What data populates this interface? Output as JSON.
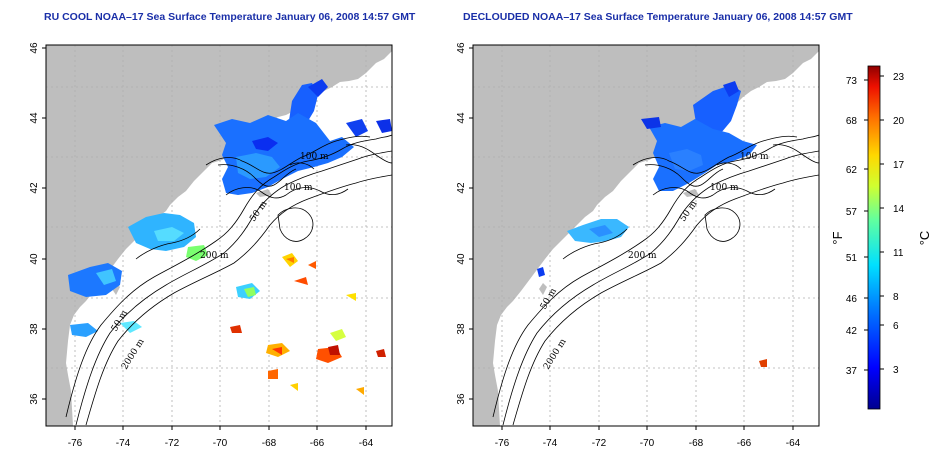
{
  "panels": [
    {
      "title": "RU COOL NOAA–17 Sea Surface Temperature January 06, 2008 14:57 GMT",
      "lat_ticks": [
        "36",
        "38",
        "40",
        "42",
        "44",
        "46"
      ],
      "lon_ticks": [
        "-76",
        "-74",
        "-72",
        "-70",
        "-68",
        "-66",
        "-64"
      ],
      "contour_labels": [
        "100 m",
        "100 m",
        "50 m",
        "200 m",
        "50 m",
        "2000 m"
      ]
    },
    {
      "title": "DECLOUDED NOAA–17 Sea Surface Temperature January 06, 2008 14:57 GMT",
      "lat_ticks": [
        "36",
        "38",
        "40",
        "42",
        "44",
        "46"
      ],
      "lon_ticks": [
        "-76",
        "-74",
        "-72",
        "-70",
        "-68",
        "-66",
        "-64"
      ],
      "contour_labels": [
        "100 m",
        "100 m",
        "50 m",
        "200 m",
        "50 m",
        "2000 m"
      ]
    }
  ],
  "colorbar": {
    "fahrenheit_ticks": [
      "73",
      "68",
      "62",
      "57",
      "51",
      "46",
      "42",
      "37"
    ],
    "celsius_ticks": [
      "23",
      "20",
      "17",
      "14",
      "11",
      "8",
      "6",
      "3"
    ],
    "fahrenheit_unit": "°F",
    "celsius_unit": "°C"
  },
  "colors": {
    "land": "#bebebe",
    "title": "#1a2fa8",
    "grid": "#b0b0b0"
  }
}
